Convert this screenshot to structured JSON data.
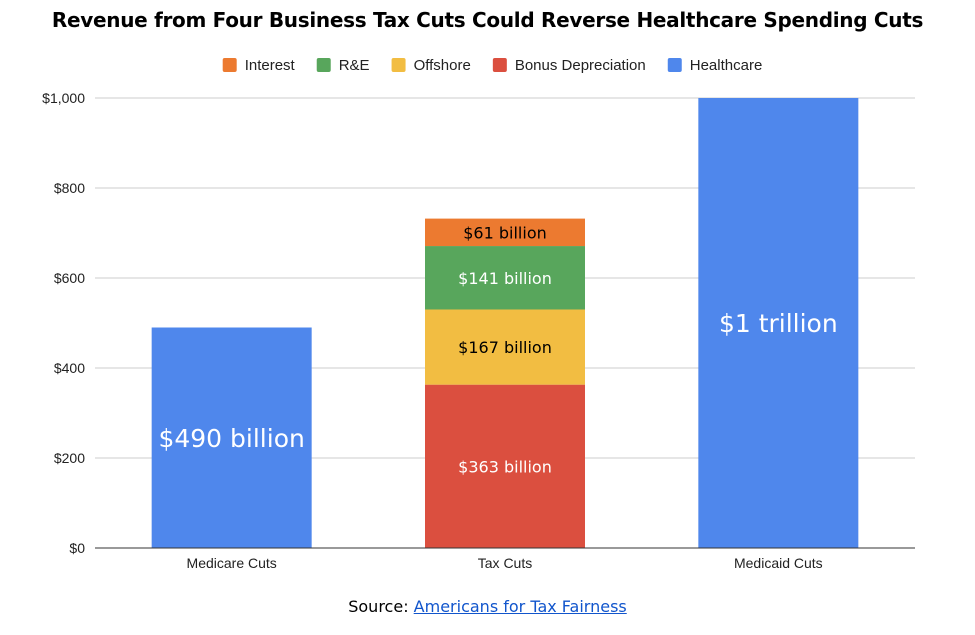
{
  "title": "Revenue from Four Business Tax Cuts Could Reverse Healthcare Spending Cuts",
  "source": {
    "prefix": "Source:",
    "link_text": "Americans for Tax Fairness"
  },
  "chart_data": {
    "type": "bar",
    "stacked": true,
    "categories": [
      "Medicare Cuts",
      "Tax Cuts",
      "Medicaid Cuts"
    ],
    "ylim": [
      0,
      1000
    ],
    "yticks": [
      0,
      200,
      400,
      600,
      800,
      1000
    ],
    "ytick_labels": [
      "$0",
      "$200",
      "$400",
      "$600",
      "$800",
      "$1,000"
    ],
    "grid": true,
    "legend_position": "top",
    "legend_order": [
      "Interest",
      "R&E",
      "Offshore",
      "Bonus Depreciation",
      "Healthcare"
    ],
    "series": [
      {
        "name": "Bonus Depreciation",
        "color": "#db4f3f",
        "values": [
          null,
          363,
          null
        ],
        "labels": [
          "",
          "$363 billion",
          ""
        ]
      },
      {
        "name": "Offshore",
        "color": "#f2bd42",
        "values": [
          null,
          167,
          null
        ],
        "labels": [
          "",
          "$167 billion",
          ""
        ]
      },
      {
        "name": "R&E",
        "color": "#58a65c",
        "values": [
          null,
          141,
          null
        ],
        "labels": [
          "",
          "$141 billion",
          ""
        ]
      },
      {
        "name": "Interest",
        "color": "#ec7a30",
        "values": [
          null,
          61,
          null
        ],
        "labels": [
          "",
          "$61 billion",
          ""
        ]
      },
      {
        "name": "Healthcare",
        "color": "#4f87ec",
        "values": [
          490,
          null,
          1000
        ],
        "labels": [
          "$490 billion",
          "",
          "$1 trillion"
        ]
      }
    ]
  }
}
